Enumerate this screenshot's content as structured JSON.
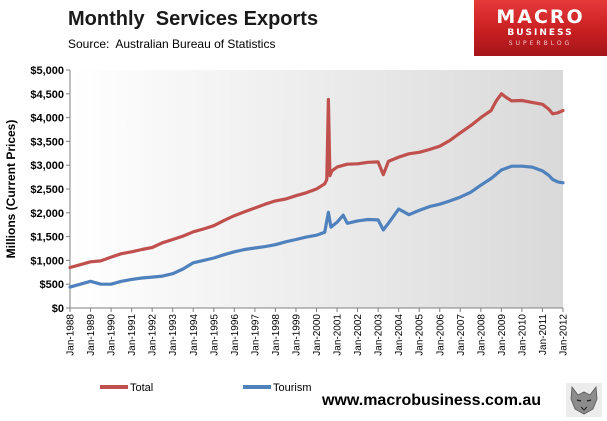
{
  "header": {
    "title": "Monthly  Services Exports",
    "subtitle": "Source:  Australian Bureau of Statistics"
  },
  "logo": {
    "main": "MACRO",
    "sub": "BUSINESS",
    "tag": "SUPERBLOG"
  },
  "footer": {
    "website": "www.macrobusiness.com.au"
  },
  "colors": {
    "total": "#c0504d",
    "tourism": "#4f81bd",
    "plot_bg_light": "#ffffff",
    "plot_bg_dark": "#d9d9d9",
    "logo_red": "#c81f22"
  },
  "chart_data": {
    "type": "line",
    "ylabel": "Millions (Current Prices)",
    "xlabel": "",
    "ylim": [
      0,
      5000
    ],
    "xlim": [
      "Jan-1988",
      "Jan-2012"
    ],
    "grid": false,
    "legend": "bottom",
    "yticks": [
      "$0",
      "$500",
      "$1,000",
      "$1,500",
      "$2,000",
      "$2,500",
      "$3,000",
      "$3,500",
      "$4,000",
      "$4,500",
      "$5,000"
    ],
    "xticks": [
      "Jan-1988",
      "Jan-1989",
      "Jan-1990",
      "Jan-1991",
      "Jan-1992",
      "Jan-1993",
      "Jan-1994",
      "Jan-1995",
      "Jan-1996",
      "Jan-1997",
      "Jan-1998",
      "Jan-1999",
      "Jan-2000",
      "Jan-2001",
      "Jan-2002",
      "Jan-2003",
      "Jan-2004",
      "Jan-2005",
      "Jan-2006",
      "Jan-2007",
      "Jan-2008",
      "Jan-2009",
      "Jan-2010",
      "Jan-2011",
      "Jan-2012"
    ],
    "series": [
      {
        "name": "Total",
        "x": [
          1988.0,
          1988.5,
          1989.0,
          1989.5,
          1990.0,
          1990.5,
          1991.0,
          1991.5,
          1992.0,
          1992.5,
          1993.0,
          1993.5,
          1994.0,
          1994.5,
          1995.0,
          1995.5,
          1996.0,
          1996.5,
          1997.0,
          1997.5,
          1998.0,
          1998.5,
          1999.0,
          1999.5,
          2000.0,
          2000.4,
          2000.5,
          2000.58,
          2000.65,
          2000.75,
          2001.0,
          2001.5,
          2002.0,
          2002.5,
          2003.0,
          2003.25,
          2003.5,
          2004.0,
          2004.5,
          2005.0,
          2005.5,
          2006.0,
          2006.5,
          2007.0,
          2007.5,
          2008.0,
          2008.5,
          2008.75,
          2009.0,
          2009.25,
          2009.5,
          2010.0,
          2010.5,
          2011.0,
          2011.3,
          2011.5,
          2011.75,
          2012.0
        ],
        "values": [
          850,
          910,
          970,
          990,
          1070,
          1140,
          1180,
          1230,
          1270,
          1370,
          1440,
          1510,
          1600,
          1660,
          1730,
          1840,
          1940,
          2020,
          2100,
          2180,
          2250,
          2290,
          2360,
          2420,
          2500,
          2610,
          2700,
          4380,
          2780,
          2880,
          2960,
          3020,
          3030,
          3060,
          3070,
          2800,
          3080,
          3170,
          3240,
          3270,
          3330,
          3400,
          3520,
          3680,
          3830,
          4000,
          4150,
          4350,
          4500,
          4420,
          4350,
          4360,
          4320,
          4280,
          4180,
          4080,
          4100,
          4150
        ]
      },
      {
        "name": "Tourism",
        "x": [
          1988.0,
          1988.5,
          1989.0,
          1989.5,
          1990.0,
          1990.5,
          1991.0,
          1991.5,
          1992.0,
          1992.5,
          1993.0,
          1993.5,
          1994.0,
          1994.5,
          1995.0,
          1995.5,
          1996.0,
          1996.5,
          1997.0,
          1997.5,
          1998.0,
          1998.5,
          1999.0,
          1999.5,
          2000.0,
          2000.4,
          2000.58,
          2000.7,
          2001.0,
          2001.3,
          2001.5,
          2002.0,
          2002.5,
          2003.0,
          2003.25,
          2003.5,
          2004.0,
          2004.5,
          2005.0,
          2005.5,
          2006.0,
          2006.5,
          2007.0,
          2007.5,
          2008.0,
          2008.5,
          2009.0,
          2009.5,
          2010.0,
          2010.5,
          2011.0,
          2011.3,
          2011.5,
          2011.75,
          2012.0
        ],
        "values": [
          440,
          500,
          560,
          500,
          500,
          560,
          600,
          630,
          650,
          670,
          720,
          820,
          950,
          1000,
          1050,
          1120,
          1180,
          1230,
          1260,
          1290,
          1330,
          1390,
          1440,
          1490,
          1530,
          1590,
          2010,
          1700,
          1800,
          1950,
          1780,
          1830,
          1860,
          1850,
          1640,
          1780,
          2080,
          1960,
          2050,
          2130,
          2180,
          2250,
          2330,
          2430,
          2580,
          2720,
          2900,
          2980,
          2980,
          2960,
          2880,
          2790,
          2700,
          2650,
          2630
        ]
      }
    ]
  }
}
